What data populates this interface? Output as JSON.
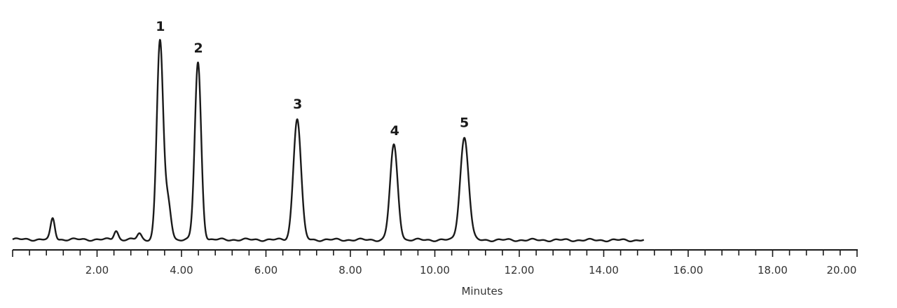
{
  "chart_data": {
    "type": "line",
    "title": "",
    "xlabel": "Minutes",
    "ylabel": "",
    "xlim": [
      0,
      20
    ],
    "ylim": [
      0,
      1
    ],
    "x_ticks": [
      2,
      4,
      6,
      8,
      10,
      12,
      14,
      16,
      18,
      20
    ],
    "x_tick_labels": [
      "2.00",
      "4.00",
      "6.00",
      "8.00",
      "10.00",
      "12.00",
      "14.00",
      "16.00",
      "18.00",
      "20.00"
    ],
    "minor_tick_step": 0.4,
    "grid": false,
    "trace_end_x": 14.95,
    "peaks": [
      {
        "label": "1",
        "x": 3.5,
        "y": 1.0
      },
      {
        "label": "2",
        "x": 4.4,
        "y": 0.89
      },
      {
        "label": "3",
        "x": 6.75,
        "y": 0.61
      },
      {
        "label": "4",
        "x": 9.05,
        "y": 0.475
      },
      {
        "label": "5",
        "x": 10.7,
        "y": 0.515
      }
    ],
    "minor_peaks": [
      {
        "x": 0.95,
        "y": 0.105
      },
      {
        "x": 2.45,
        "y": 0.045
      },
      {
        "x": 3.0,
        "y": 0.03
      }
    ],
    "line_color": "#1a1a1a"
  }
}
